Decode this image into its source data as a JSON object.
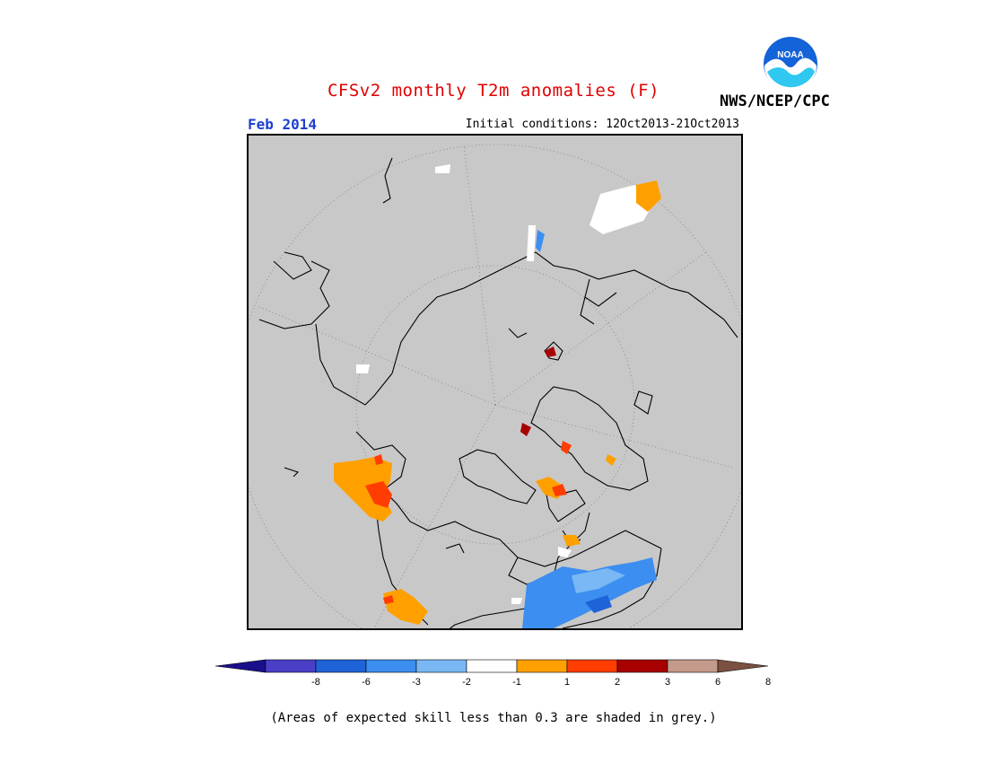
{
  "header": {
    "title": "CFSv2 monthly T2m anomalies (F)",
    "period": "Feb 2014",
    "initial_conditions": "Initial conditions: 12Oct2013-21Oct2013",
    "organization": "NWS/NCEP/CPC",
    "logo_text": "NOAA"
  },
  "colors": {
    "map_background": "#c8c8c8",
    "coastline": "#000000",
    "bins": [
      "#1a0f8a",
      "#4b3fc8",
      "#1f63d8",
      "#3c8ef0",
      "#79b8f5",
      "#ffffff",
      "#ffa000",
      "#ff3d00",
      "#a80000",
      "#c49a8a",
      "#7a5040"
    ]
  },
  "legend": {
    "tick_labels": [
      "-8",
      "-6",
      "-3",
      "-2",
      "-1",
      "1",
      "2",
      "3",
      "6",
      "8"
    ]
  },
  "footer": {
    "note": "(Areas of expected skill less than 0.3 are shaded in grey.)"
  }
}
